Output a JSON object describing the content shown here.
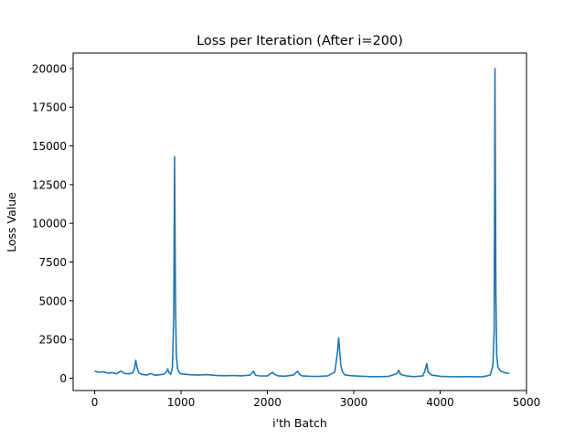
{
  "chart_data": {
    "type": "line",
    "title": "Loss per Iteration (After i=200)",
    "xlabel": "i'th Batch",
    "ylabel": "Loss Value",
    "xlim": [
      -250,
      5000
    ],
    "ylim": [
      -800,
      21000
    ],
    "xticks": [
      0,
      1000,
      2000,
      3000,
      4000,
      5000
    ],
    "yticks": [
      0,
      2500,
      5000,
      7500,
      10000,
      12500,
      15000,
      17500,
      20000
    ],
    "xtick_labels": [
      "0",
      "1000",
      "2000",
      "3000",
      "4000",
      "5000"
    ],
    "ytick_labels": [
      "0",
      "2500",
      "5000",
      "7500",
      "10000",
      "12500",
      "15000",
      "17500",
      "20000"
    ],
    "grid": false,
    "color": "#1f77b4",
    "series": [
      {
        "x": [
          0,
          50,
          100,
          150,
          200,
          250,
          300,
          350,
          400,
          440,
          460,
          475,
          490,
          510,
          540,
          600,
          650,
          700,
          750,
          800,
          830,
          845,
          860,
          880,
          900,
          915,
          925,
          935,
          945,
          960,
          980,
          1000,
          1050,
          1100,
          1200,
          1300,
          1400,
          1500,
          1600,
          1700,
          1800,
          1840,
          1860,
          1900,
          2000,
          2060,
          2080,
          2120,
          2200,
          2300,
          2350,
          2370,
          2400,
          2500,
          2600,
          2700,
          2780,
          2810,
          2825,
          2835,
          2850,
          2870,
          2900,
          3000,
          3100,
          3200,
          3300,
          3400,
          3500,
          3520,
          3540,
          3600,
          3700,
          3800,
          3825,
          3845,
          3860,
          3900,
          4000,
          4100,
          4200,
          4300,
          4400,
          4500,
          4580,
          4610,
          4625,
          4635,
          4645,
          4655,
          4670,
          4700,
          4750,
          4800
        ],
        "y": [
          450,
          380,
          410,
          320,
          360,
          280,
          450,
          300,
          280,
          350,
          600,
          1150,
          700,
          350,
          250,
          200,
          300,
          180,
          220,
          250,
          400,
          600,
          350,
          250,
          700,
          4000,
          14300,
          5000,
          1500,
          600,
          350,
          280,
          250,
          220,
          200,
          230,
          180,
          160,
          170,
          150,
          200,
          450,
          200,
          150,
          140,
          380,
          250,
          150,
          130,
          200,
          450,
          250,
          150,
          120,
          110,
          150,
          400,
          1600,
          2600,
          1800,
          800,
          400,
          200,
          150,
          120,
          100,
          100,
          110,
          300,
          500,
          250,
          150,
          100,
          150,
          500,
          950,
          400,
          200,
          120,
          100,
          90,
          100,
          90,
          100,
          200,
          800,
          3000,
          20000,
          5500,
          1500,
          700,
          450,
          350,
          300
        ]
      }
    ]
  }
}
